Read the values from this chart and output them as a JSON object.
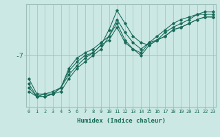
{
  "xlabel": "Humidex (Indice chaleur)",
  "background_color": "#cce8e4",
  "grid_color": "#9fbfbb",
  "line_color": "#1a6b5a",
  "x_min": 0,
  "x_max": 23,
  "y_label_val": -7,
  "y_min": -11.0,
  "y_max": -3.0,
  "lines": [
    {
      "x": [
        0,
        1,
        2,
        3,
        4,
        5,
        6,
        7,
        8,
        9,
        10,
        11,
        12,
        13,
        14,
        15,
        16,
        17,
        18,
        19,
        20,
        21,
        22,
        23
      ],
      "y": [
        -9.5,
        -10.2,
        -10.2,
        -10.0,
        -9.5,
        -8.2,
        -7.5,
        -7.0,
        -6.8,
        -6.2,
        -5.0,
        -3.5,
        -4.5,
        -5.5,
        -6.0,
        -6.2,
        -5.8,
        -5.5,
        -5.0,
        -4.8,
        -4.5,
        -4.2,
        -4.0,
        -4.0
      ]
    },
    {
      "x": [
        0,
        1,
        2,
        3,
        4,
        5,
        6,
        7,
        8,
        9,
        10,
        11,
        12,
        13,
        14,
        15,
        16,
        17,
        18,
        19,
        20,
        21,
        22,
        23
      ],
      "y": [
        -9.8,
        -10.2,
        -10.2,
        -10.0,
        -9.8,
        -8.8,
        -8.0,
        -7.5,
        -7.0,
        -6.5,
        -5.5,
        -4.2,
        -5.2,
        -6.0,
        -6.5,
        -6.0,
        -5.8,
        -5.2,
        -4.8,
        -4.5,
        -4.2,
        -3.8,
        -3.8,
        -3.8
      ]
    },
    {
      "x": [
        0,
        1,
        2,
        3,
        4,
        5,
        6,
        7,
        8,
        9,
        10,
        11,
        12,
        13,
        14,
        15,
        16,
        17,
        18,
        19,
        20,
        21,
        22,
        23
      ],
      "y": [
        -9.2,
        -10.2,
        -10.0,
        -10.0,
        -9.5,
        -8.5,
        -7.8,
        -7.2,
        -6.8,
        -6.2,
        -5.8,
        -4.8,
        -6.0,
        -6.5,
        -6.8,
        -6.0,
        -5.5,
        -5.0,
        -4.5,
        -4.2,
        -4.0,
        -3.8,
        -3.6,
        -3.6
      ]
    },
    {
      "x": [
        0,
        1,
        2,
        3,
        4,
        5,
        6,
        7,
        8,
        9,
        10,
        11,
        12,
        13,
        14,
        15,
        16,
        17,
        18,
        19,
        20,
        21,
        22,
        23
      ],
      "y": [
        -8.8,
        -10.0,
        -10.0,
        -9.8,
        -9.5,
        -8.0,
        -7.2,
        -6.8,
        -6.5,
        -6.0,
        -5.5,
        -4.5,
        -5.8,
        -6.5,
        -7.0,
        -6.2,
        -5.8,
        -5.5,
        -5.0,
        -4.8,
        -4.5,
        -4.2,
        -4.0,
        -4.0
      ]
    }
  ]
}
